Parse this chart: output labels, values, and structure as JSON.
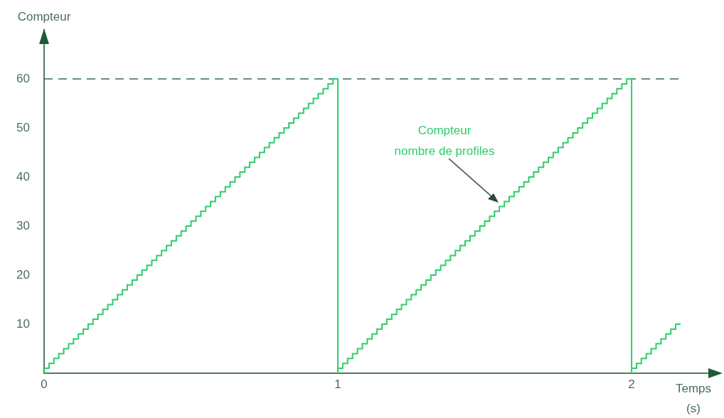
{
  "chart_data": {
    "type": "step",
    "xlabel": "Temps\n(s)",
    "ylabel": "Compteur",
    "xlim": [
      0,
      2.3
    ],
    "xticks": [
      0,
      1,
      2
    ],
    "ylim": [
      0,
      70
    ],
    "yticks": [
      10,
      20,
      30,
      40,
      50,
      60
    ],
    "grid": false,
    "legend": false,
    "marker": "none",
    "series": [
      {
        "color": "#2fcc6b",
        "x": [
          0,
          0.0167,
          0.0333,
          0.05,
          0.0667,
          0.0833,
          0.1,
          0.1167,
          0.1333,
          0.15,
          0.1667,
          0.1833,
          0.2,
          0.2167,
          0.2333,
          0.25,
          0.2667,
          0.2833,
          0.3,
          0.3167,
          0.3333,
          0.35,
          0.3667,
          0.3833,
          0.4,
          0.4167,
          0.4333,
          0.45,
          0.4667,
          0.4833,
          0.5,
          0.5167,
          0.5333,
          0.55,
          0.5667,
          0.5833,
          0.6,
          0.6167,
          0.6333,
          0.65,
          0.6667,
          0.6833,
          0.7,
          0.7167,
          0.7333,
          0.75,
          0.7667,
          0.7833,
          0.8,
          0.8167,
          0.8333,
          0.85,
          0.8667,
          0.8833,
          0.9,
          0.9167,
          0.9333,
          0.95,
          0.9667,
          0.9833,
          1,
          1,
          1.0167,
          1.0333,
          1.05,
          1.0667,
          1.0833,
          1.1,
          1.1167,
          1.1333,
          1.15,
          1.1667,
          1.1833,
          1.2,
          1.2167,
          1.2333,
          1.25,
          1.2667,
          1.2833,
          1.3,
          1.3167,
          1.3333,
          1.35,
          1.3667,
          1.3833,
          1.4,
          1.4167,
          1.4333,
          1.45,
          1.4667,
          1.4833,
          1.5,
          1.5167,
          1.5333,
          1.55,
          1.5667,
          1.5833,
          1.6,
          1.6167,
          1.6333,
          1.65,
          1.6667,
          1.6833,
          1.7,
          1.7167,
          1.7333,
          1.75,
          1.7667,
          1.7833,
          1.8,
          1.8167,
          1.8333,
          1.85,
          1.8667,
          1.8833,
          1.9,
          1.9167,
          1.9333,
          1.95,
          1.9667,
          1.9833,
          2,
          2,
          2.0167,
          2.0333,
          2.05,
          2.0667,
          2.0833,
          2.1,
          2.1167,
          2.1333,
          2.15,
          2.1667
        ],
        "values": [
          0,
          1,
          2,
          3,
          4,
          5,
          6,
          7,
          8,
          9,
          10,
          11,
          12,
          13,
          14,
          15,
          16,
          17,
          18,
          19,
          20,
          21,
          22,
          23,
          24,
          25,
          26,
          27,
          28,
          29,
          30,
          31,
          32,
          33,
          34,
          35,
          36,
          37,
          38,
          39,
          40,
          41,
          42,
          43,
          44,
          45,
          46,
          47,
          48,
          49,
          50,
          51,
          52,
          53,
          54,
          55,
          56,
          57,
          58,
          59,
          60,
          0,
          1,
          2,
          3,
          4,
          5,
          6,
          7,
          8,
          9,
          10,
          11,
          12,
          13,
          14,
          15,
          16,
          17,
          18,
          19,
          20,
          21,
          22,
          23,
          24,
          25,
          26,
          27,
          28,
          29,
          30,
          31,
          32,
          33,
          34,
          35,
          36,
          37,
          38,
          39,
          40,
          41,
          42,
          43,
          44,
          45,
          46,
          47,
          48,
          49,
          50,
          51,
          52,
          53,
          54,
          55,
          56,
          57,
          58,
          59,
          60,
          0,
          1,
          2,
          3,
          4,
          5,
          6,
          7,
          8,
          9,
          10
        ]
      }
    ],
    "ref_lines": [
      {
        "axis": "y",
        "value": 60,
        "color": "#3d6b4f",
        "line_style": "dashed"
      }
    ],
    "annotations": [
      "Compteur\nnombre de profiles"
    ]
  }
}
